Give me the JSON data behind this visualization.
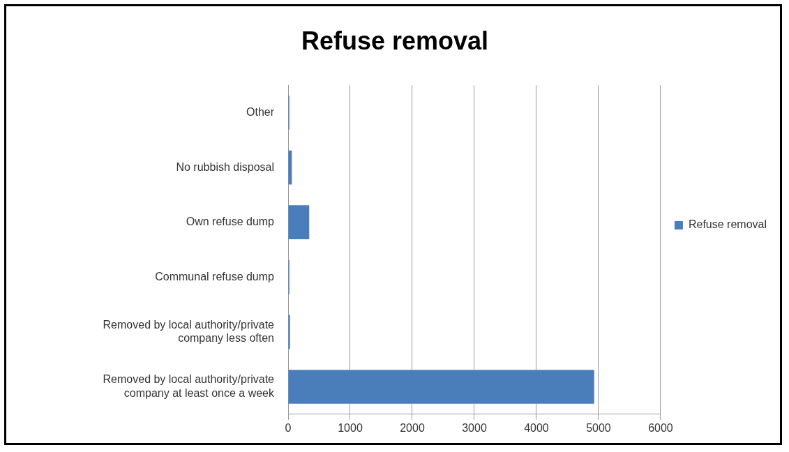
{
  "chart_data": {
    "type": "bar",
    "orientation": "horizontal",
    "title": "Refuse removal",
    "categories": [
      "Other",
      "No rubbish disposal",
      "Own refuse dump",
      "Communal refuse dump",
      [
        "Removed by local authority/private",
        "company less often"
      ],
      [
        "Removed by local authority/private",
        "company at least once a week"
      ]
    ],
    "series": [
      {
        "name": "Refuse removal",
        "color": "#4a7ebb",
        "values": [
          20,
          60,
          340,
          20,
          30,
          4930
        ]
      }
    ],
    "xlim": [
      0,
      6000
    ],
    "xticks": [
      0,
      1000,
      2000,
      3000,
      4000,
      5000,
      6000
    ],
    "grid": "x",
    "legend": "right"
  }
}
